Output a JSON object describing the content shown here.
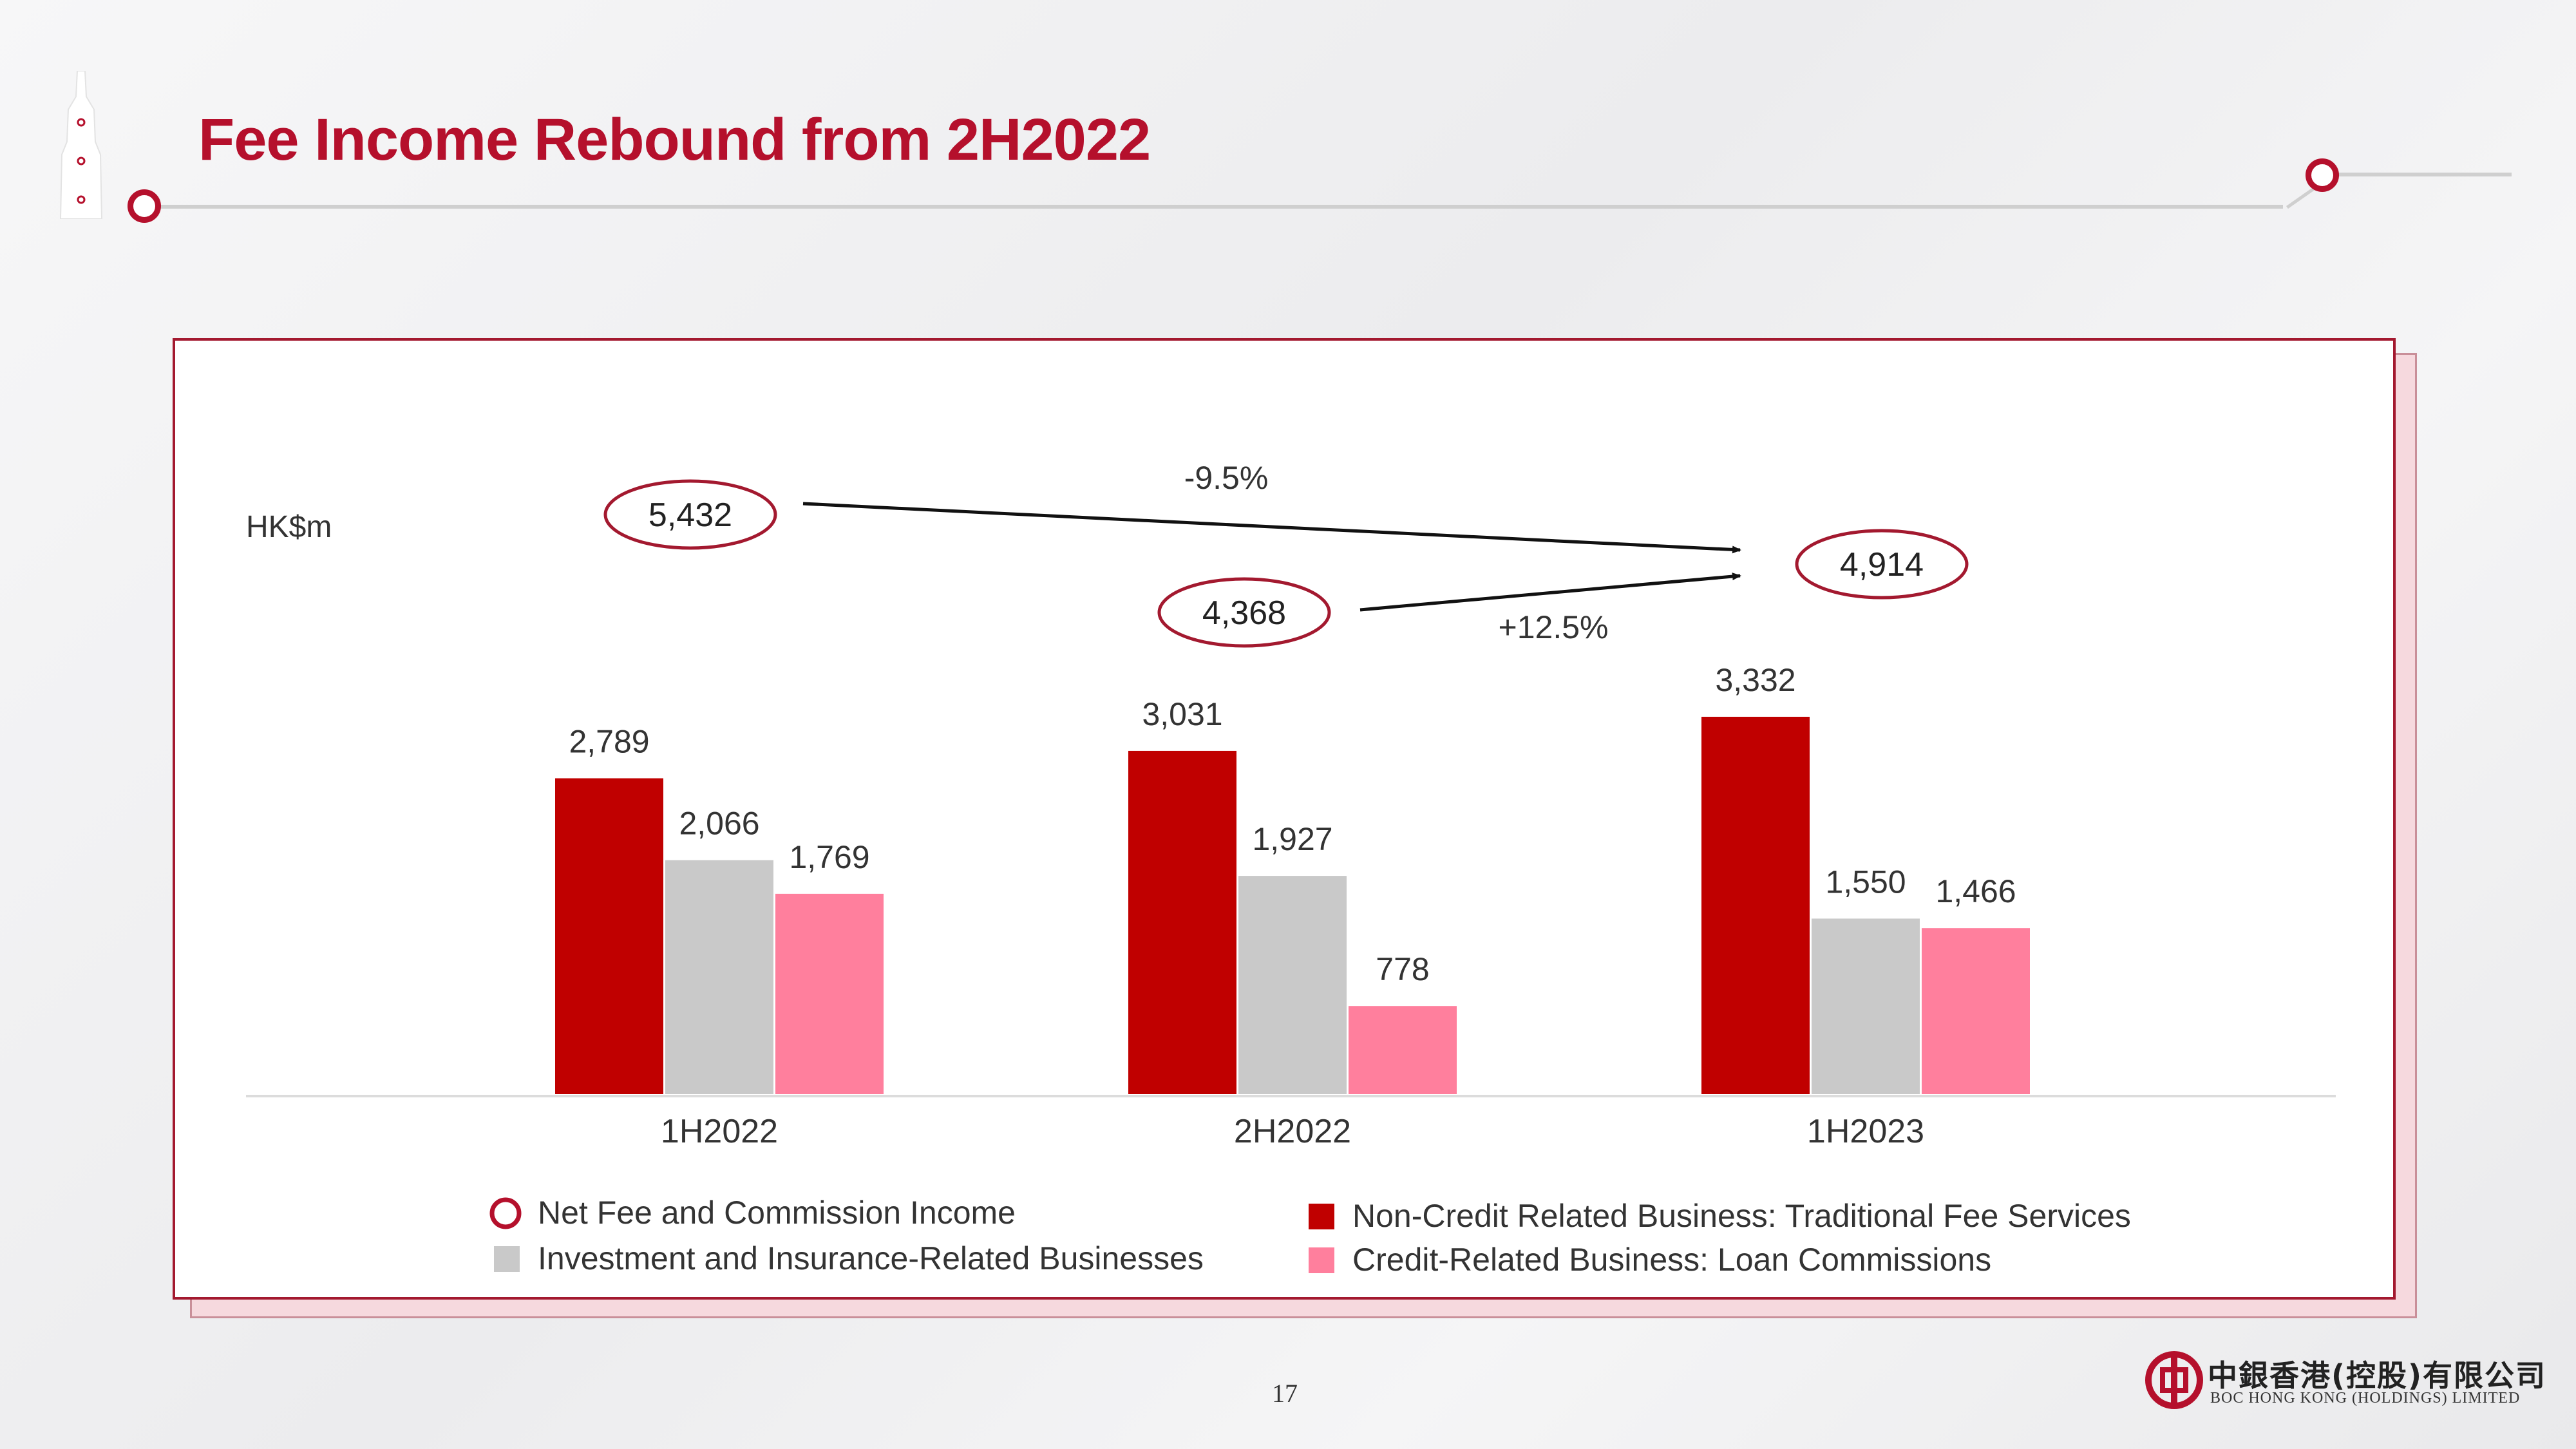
{
  "slide": {
    "title": "Fee Income Rebound from 2H2022",
    "page_number": "17",
    "brand_color": "#b5102c"
  },
  "logo": {
    "name_cn": "中銀香港(控股)有限公司",
    "name_en": "BOC HONG KONG (HOLDINGS) LIMITED",
    "icon": "boc-logo-icon"
  },
  "chart_data": {
    "type": "bar",
    "unit_label": "HK$m",
    "categories": [
      "1H2022",
      "2H2022",
      "1H2023"
    ],
    "series": [
      {
        "name": "Non-Credit Related Business: Traditional Fee Services",
        "color": "#c00000",
        "values": [
          2789,
          3031,
          3332
        ],
        "labels": [
          "2,789",
          "3,031",
          "3,332"
        ]
      },
      {
        "name": "Investment and Insurance-Related Businesses",
        "color": "#c9c9c9",
        "values": [
          2066,
          1927,
          1550
        ],
        "labels": [
          "2,066",
          "1,927",
          "1,550"
        ]
      },
      {
        "name": "Credit-Related Business: Loan Commissions",
        "color": "#ff7f9d",
        "values": [
          1769,
          778,
          1466
        ],
        "labels": [
          "1,769",
          "778",
          "1,466"
        ]
      }
    ],
    "totals": {
      "name": "Net Fee and Commission Income",
      "values": [
        5432,
        4368,
        4914
      ],
      "labels": [
        "5,432",
        "4,368",
        "4,914"
      ]
    },
    "changes": [
      {
        "from": "1H2022",
        "to": "1H2023",
        "label": "-9.5%"
      },
      {
        "from": "2H2022",
        "to": "1H2023",
        "label": "+12.5%"
      }
    ],
    "legend_order": [
      "Net Fee and Commission Income",
      "Investment and Insurance-Related Businesses",
      "Non-Credit Related Business: Traditional Fee Services",
      "Credit-Related Business: Loan Commissions"
    ],
    "legend_placement": "bottom",
    "ylim": [
      0,
      3500
    ],
    "grid": false
  }
}
